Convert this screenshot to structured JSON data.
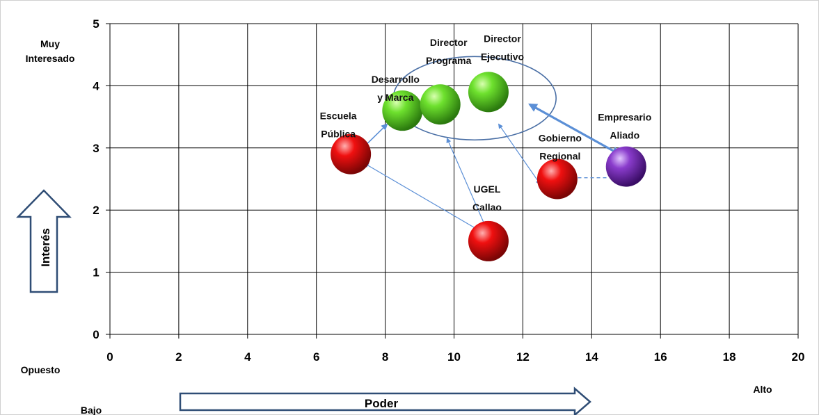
{
  "chart_data": {
    "type": "scatter",
    "xlim": [
      0,
      20
    ],
    "ylim": [
      0,
      5
    ],
    "x_ticks": [
      0,
      2,
      4,
      6,
      8,
      10,
      12,
      14,
      16,
      18,
      20
    ],
    "y_ticks": [
      0,
      1,
      2,
      3,
      4,
      5
    ],
    "grid": true,
    "y_axis_arrow_label": "Interés",
    "x_axis_arrow_label": "Poder",
    "y_top_label": "Muy\nInteresado",
    "y_bottom_label": "Opuesto",
    "x_low_label": "Bajo",
    "x_high_label": "Alto",
    "colors": {
      "green": "#5fd12a",
      "red": "#e30b0b",
      "purple": "#7b2fb8",
      "arrow": "#5b8fd6",
      "ellipse": "#4a6fa5"
    },
    "points": [
      {
        "label": "Escuela\nPública",
        "x": 7,
        "y": 2.9,
        "color": "red"
      },
      {
        "label": "Desarrollo\ny Marca",
        "x": 8.5,
        "y": 3.6,
        "color": "green"
      },
      {
        "label": "Director\nPrograma",
        "x": 9.6,
        "y": 3.7,
        "color": "green"
      },
      {
        "label": "Director\nEjecutivo",
        "x": 11,
        "y": 3.9,
        "color": "green"
      },
      {
        "label": "UGEL\nCallao",
        "x": 11,
        "y": 1.5,
        "color": "red"
      },
      {
        "label": "Gobierno\nRegional",
        "x": 13,
        "y": 2.5,
        "color": "red"
      },
      {
        "label": "Empresario\nAliado",
        "x": 15,
        "y": 2.7,
        "color": "purple"
      }
    ]
  }
}
